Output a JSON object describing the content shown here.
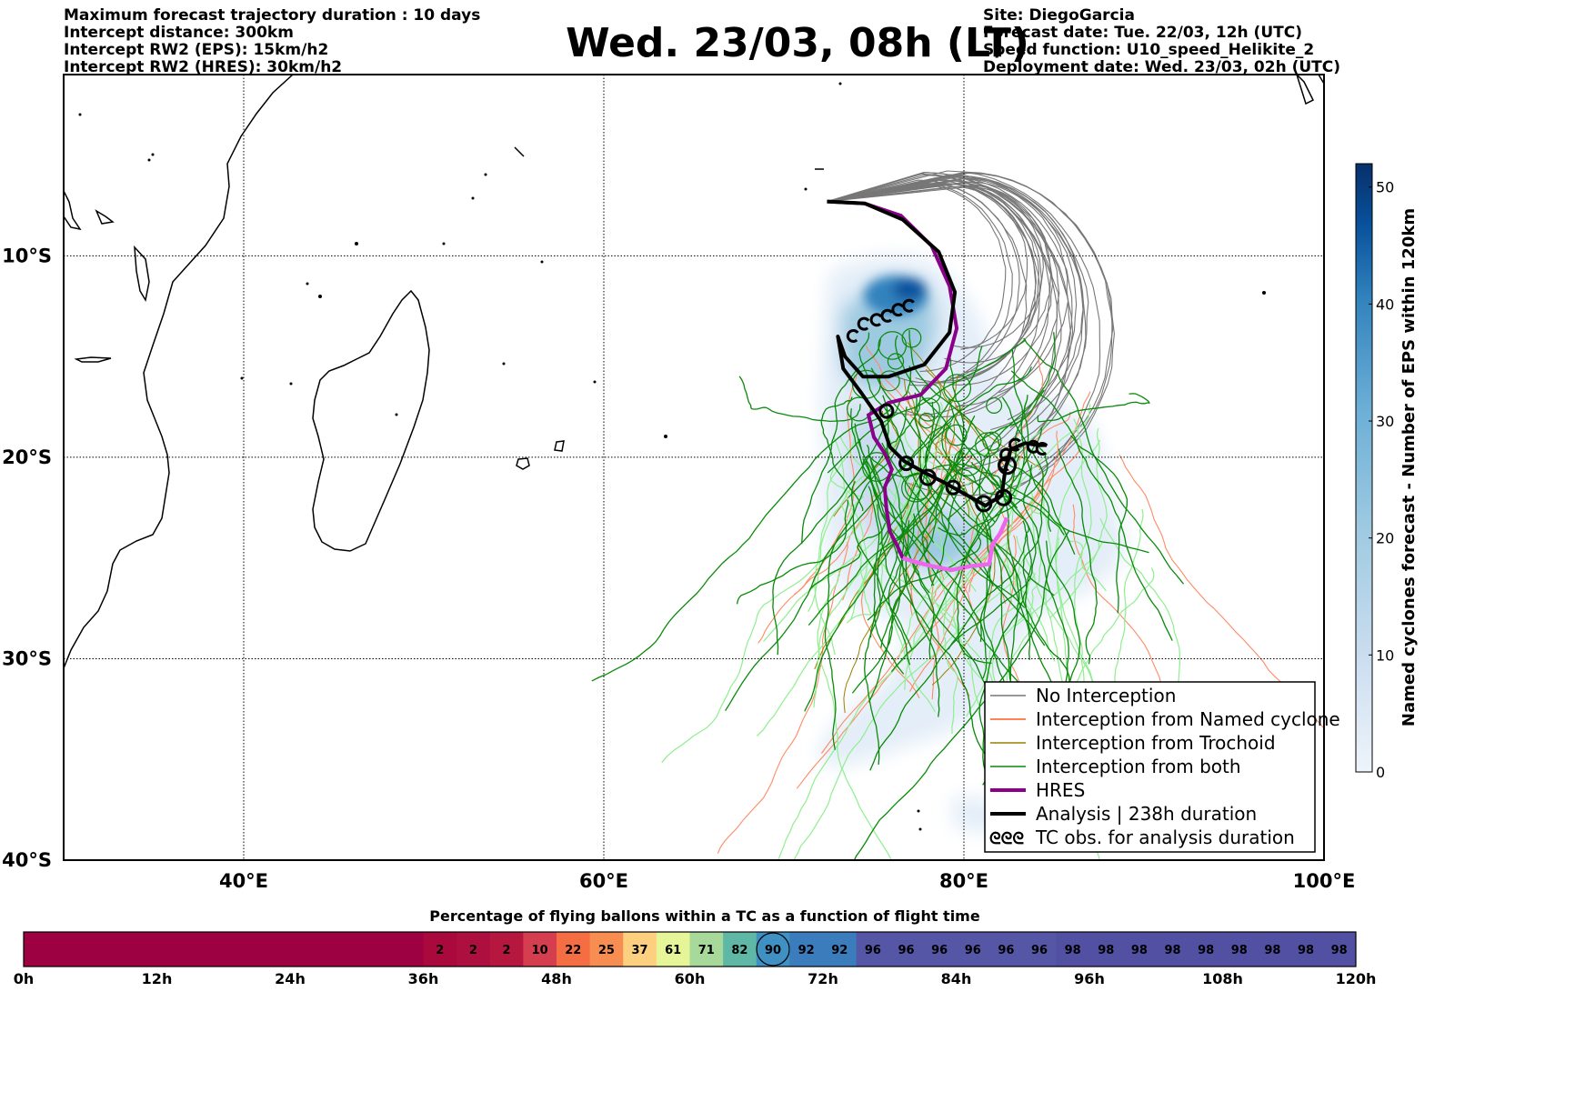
{
  "header_left": [
    "Maximum forecast trajectory duration : 10 days",
    "Intercept distance: 300km",
    "Intercept RW2 (EPS):  15km/h2",
    "Intercept RW2 (HRES): 30km/h2"
  ],
  "title": "Wed. 23/03, 08h (LT)",
  "header_right": [
    "Site: DiegoGarcia",
    "Forecast date: Tue. 22/03, 12h (UTC)",
    "Speed function: U10_speed_Helikite_2",
    "Deployment date: Wed. 23/03, 02h (UTC)"
  ],
  "map": {
    "lon_range": [
      30,
      100
    ],
    "lat_range": [
      -40,
      -1
    ],
    "lon_ticks": [
      {
        "value": 40,
        "label": "40°E"
      },
      {
        "value": 60,
        "label": "60°E"
      },
      {
        "value": 80,
        "label": "80°E"
      },
      {
        "value": 100,
        "label": "100°E"
      }
    ],
    "lat_ticks": [
      {
        "value": -10,
        "label": "10°S"
      },
      {
        "value": -20,
        "label": "20°S"
      },
      {
        "value": -30,
        "label": "30°S"
      },
      {
        "value": -40,
        "label": "40°S"
      }
    ],
    "gridlines": true
  },
  "colorbar": {
    "label": "Named cyclones forecast - Number of EPS within 120km",
    "ticks": [
      0,
      10,
      20,
      30,
      40,
      50
    ],
    "range": [
      0,
      52
    ],
    "colors": [
      "#eef4fb",
      "#c9dcef",
      "#9ecae1",
      "#6baed6",
      "#3182bd",
      "#08519c",
      "#08306b"
    ]
  },
  "legend": {
    "entries": [
      {
        "label": "No Interception",
        "color": "#777777",
        "style": "thin"
      },
      {
        "label": "Interception from Named cyclone",
        "color": "#ff5a1f",
        "style": "thin"
      },
      {
        "label": "Interception from Trochoid",
        "color": "#9a7f00",
        "style": "thin"
      },
      {
        "label": "Interception from both",
        "color": "#0a8a0a",
        "style": "thin"
      },
      {
        "label": "HRES",
        "color": "#8b008b",
        "style": "thick"
      },
      {
        "label": "Analysis | 238h duration",
        "color": "#000000",
        "style": "thick"
      },
      {
        "label": "TC obs. for analysis duration",
        "color": "#000000",
        "style": "cyclone"
      }
    ],
    "cyclone_symbol": "ᘓᘓᘓ"
  },
  "bottom_bar": {
    "title": "Percentage of flying ballons within a TC as a function of flight time",
    "time_labels": [
      "0h",
      "12h",
      "24h",
      "36h",
      "48h",
      "60h",
      "72h",
      "84h",
      "96h",
      "108h",
      "120h"
    ],
    "leading_cells": 12,
    "leading_color": "#9e0142",
    "cells": [
      {
        "v": "2",
        "c": "#a9093d"
      },
      {
        "v": "2",
        "c": "#ad0f3e"
      },
      {
        "v": "2",
        "c": "#b5173f"
      },
      {
        "v": "10",
        "c": "#d53e4f"
      },
      {
        "v": "22",
        "c": "#f46d43"
      },
      {
        "v": "25",
        "c": "#f88d52"
      },
      {
        "v": "37",
        "c": "#fdd07f"
      },
      {
        "v": "61",
        "c": "#e6f598"
      },
      {
        "v": "71",
        "c": "#a6d99a"
      },
      {
        "v": "82",
        "c": "#5fb8a6"
      },
      {
        "v": "90",
        "c": "#3f90c3",
        "circled": true
      },
      {
        "v": "92",
        "c": "#3b7cbc"
      },
      {
        "v": "92",
        "c": "#3b7cbc"
      },
      {
        "v": "96",
        "c": "#5556a6"
      },
      {
        "v": "96",
        "c": "#5556a6"
      },
      {
        "v": "96",
        "c": "#5556a6"
      },
      {
        "v": "96",
        "c": "#5556a6"
      },
      {
        "v": "96",
        "c": "#5556a6"
      },
      {
        "v": "96",
        "c": "#5556a6"
      },
      {
        "v": "98",
        "c": "#5150a3"
      },
      {
        "v": "98",
        "c": "#5150a3"
      },
      {
        "v": "98",
        "c": "#5150a3"
      },
      {
        "v": "98",
        "c": "#5150a3"
      },
      {
        "v": "98",
        "c": "#5150a3"
      },
      {
        "v": "98",
        "c": "#5150a3"
      },
      {
        "v": "98",
        "c": "#5150a3"
      },
      {
        "v": "98",
        "c": "#5150a3"
      },
      {
        "v": "98",
        "c": "#5150a3"
      }
    ]
  },
  "site": {
    "name": "DiegoGarcia",
    "lon": 72.4,
    "lat": -7.3
  },
  "tracks": {
    "hres": [
      [
        72.4,
        -7.3
      ],
      [
        74.5,
        -7.4
      ],
      [
        76.5,
        -8.0
      ],
      [
        78.2,
        -9.5
      ],
      [
        79.2,
        -11.5
      ],
      [
        79.6,
        -13.6
      ],
      [
        79.0,
        -15.6
      ],
      [
        77.6,
        -16.9
      ],
      [
        75.8,
        -17.3
      ],
      [
        74.7,
        -17.9
      ],
      [
        75.0,
        -19.0
      ],
      [
        75.6,
        -19.8
      ],
      [
        76.0,
        -20.6
      ],
      [
        75.6,
        -21.5
      ],
      [
        75.7,
        -22.6
      ],
      [
        75.9,
        -23.7
      ],
      [
        76.3,
        -24.4
      ],
      [
        76.6,
        -25.0
      ]
    ],
    "hres_late": [
      [
        76.6,
        -25.0
      ],
      [
        77.3,
        -25.2
      ],
      [
        78.2,
        -25.4
      ],
      [
        79.3,
        -25.6
      ],
      [
        80.4,
        -25.4
      ],
      [
        81.4,
        -25.3
      ],
      [
        81.6,
        -24.3
      ],
      [
        82.0,
        -23.8
      ],
      [
        82.4,
        -23.0
      ]
    ],
    "analysis": [
      [
        72.4,
        -7.3
      ],
      [
        74.5,
        -7.4
      ],
      [
        76.6,
        -8.2
      ],
      [
        78.6,
        -9.8
      ],
      [
        79.5,
        -11.8
      ],
      [
        79.2,
        -13.8
      ],
      [
        77.8,
        -15.4
      ],
      [
        75.8,
        -16.0
      ],
      [
        74.4,
        -16.0
      ],
      [
        73.4,
        -15.0
      ],
      [
        73.0,
        -14.0
      ],
      [
        73.3,
        -15.6
      ],
      [
        74.3,
        -16.8
      ],
      [
        75.4,
        -18.2
      ],
      [
        75.9,
        -19.5
      ],
      [
        76.7,
        -20.2
      ],
      [
        77.9,
        -20.8
      ],
      [
        79.0,
        -21.3
      ],
      [
        80.2,
        -21.9
      ],
      [
        81.2,
        -22.4
      ],
      [
        82.1,
        -21.9
      ],
      [
        82.3,
        -20.6
      ],
      [
        82.6,
        -19.6
      ],
      [
        83.4,
        -19.3
      ],
      [
        84.1,
        -19.4
      ],
      [
        84.6,
        -19.4
      ]
    ],
    "cyclone_marks": [
      [
        74.4,
        -13.4
      ],
      [
        75.1,
        -13.2
      ],
      [
        75.7,
        -13.0
      ],
      [
        76.3,
        -12.7
      ],
      [
        76.9,
        -12.5
      ],
      [
        73.8,
        -14.0
      ],
      [
        82.8,
        -19.4
      ],
      [
        83.8,
        -19.5
      ],
      [
        84.3,
        -19.6
      ],
      [
        82.3,
        -19.9
      ],
      [
        82.2,
        -20.4
      ]
    ]
  }
}
